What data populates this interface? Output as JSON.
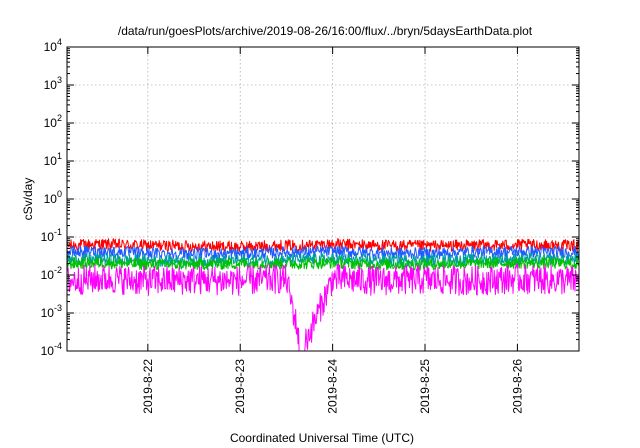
{
  "chart_data": {
    "type": "line",
    "title": "/data/run/goesPlots/archive/2019-08-26/16:00/flux/../bryn/5daysEarthData.plot",
    "xlabel": "Coordinated Universal Time (UTC)",
    "ylabel": "cSv/day",
    "yscale": "log",
    "ylim": [
      0.0001,
      10000
    ],
    "xlim": [
      "2019-08-21 03:00",
      "2019-08-26 16:00"
    ],
    "grid": true,
    "legend": "none",
    "x_ticks": [
      "2019-8-22",
      "2019-8-23",
      "2019-8-24",
      "2019-8-25",
      "2019-8-26"
    ],
    "y_ticks": [
      {
        "base": "10",
        "exp": "-4",
        "value": 0.0001
      },
      {
        "base": "10",
        "exp": "-3",
        "value": 0.001
      },
      {
        "base": "10",
        "exp": "-2",
        "value": 0.01
      },
      {
        "base": "10",
        "exp": "-1",
        "value": 0.1
      },
      {
        "base": "10",
        "exp": "0",
        "value": 1
      },
      {
        "base": "10",
        "exp": "1",
        "value": 10
      },
      {
        "base": "10",
        "exp": "2",
        "value": 100
      },
      {
        "base": "10",
        "exp": "3",
        "value": 1000
      },
      {
        "base": "10",
        "exp": "4",
        "value": 10000
      }
    ],
    "x": [
      "2019-08-21 03:00",
      "2019-08-21 12:00",
      "2019-08-22 00:00",
      "2019-08-22 12:00",
      "2019-08-23 00:00",
      "2019-08-23 12:00",
      "2019-08-23 16:00",
      "2019-08-24 00:00",
      "2019-08-24 12:00",
      "2019-08-25 00:00",
      "2019-08-25 12:00",
      "2019-08-26 00:00",
      "2019-08-26 16:00"
    ],
    "series": [
      {
        "color": "#ff0000",
        "values": [
          0.06,
          0.065,
          0.06,
          0.058,
          0.055,
          0.06,
          0.06,
          0.065,
          0.06,
          0.058,
          0.06,
          0.062,
          0.06
        ]
      },
      {
        "color": "#1f5bff",
        "values": [
          0.04,
          0.042,
          0.038,
          0.036,
          0.037,
          0.04,
          0.04,
          0.042,
          0.038,
          0.037,
          0.04,
          0.041,
          0.04
        ]
      },
      {
        "color": "#00a0a0",
        "values": [
          0.025,
          0.026,
          0.024,
          0.023,
          0.024,
          0.025,
          0.025,
          0.026,
          0.024,
          0.024,
          0.025,
          0.026,
          0.025
        ]
      },
      {
        "color": "#00c000",
        "values": [
          0.02,
          0.021,
          0.019,
          0.019,
          0.02,
          0.02,
          0.02,
          0.021,
          0.019,
          0.019,
          0.02,
          0.021,
          0.02
        ]
      },
      {
        "color": "#ff00ff",
        "values": [
          0.007,
          0.008,
          0.007,
          0.0075,
          0.007,
          0.008,
          0.0001,
          0.008,
          0.007,
          0.0075,
          0.007,
          0.008,
          0.007
        ]
      }
    ]
  }
}
